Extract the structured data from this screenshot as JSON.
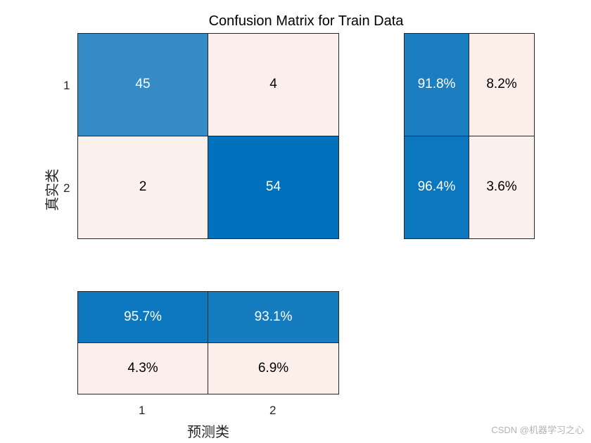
{
  "chart_data": {
    "type": "heatmap",
    "title": "Confusion Matrix for Train Data",
    "xlabel": "预测类",
    "ylabel": "真实类",
    "classes": [
      "1",
      "2"
    ],
    "matrix": [
      [
        45,
        4
      ],
      [
        2,
        54
      ]
    ],
    "row_summary": [
      [
        "91.8%",
        "8.2%"
      ],
      [
        "96.4%",
        "3.6%"
      ]
    ],
    "column_summary": [
      [
        "95.7%",
        "93.1%"
      ],
      [
        "4.3%",
        "6.9%"
      ]
    ],
    "colors": {
      "high": "#0072bd",
      "mid": "#2a86c7",
      "low": "#fbeae2",
      "lowest": "#fcf1ee",
      "grid": "#262626"
    }
  },
  "watermark": "CSDN @机器学习之心"
}
